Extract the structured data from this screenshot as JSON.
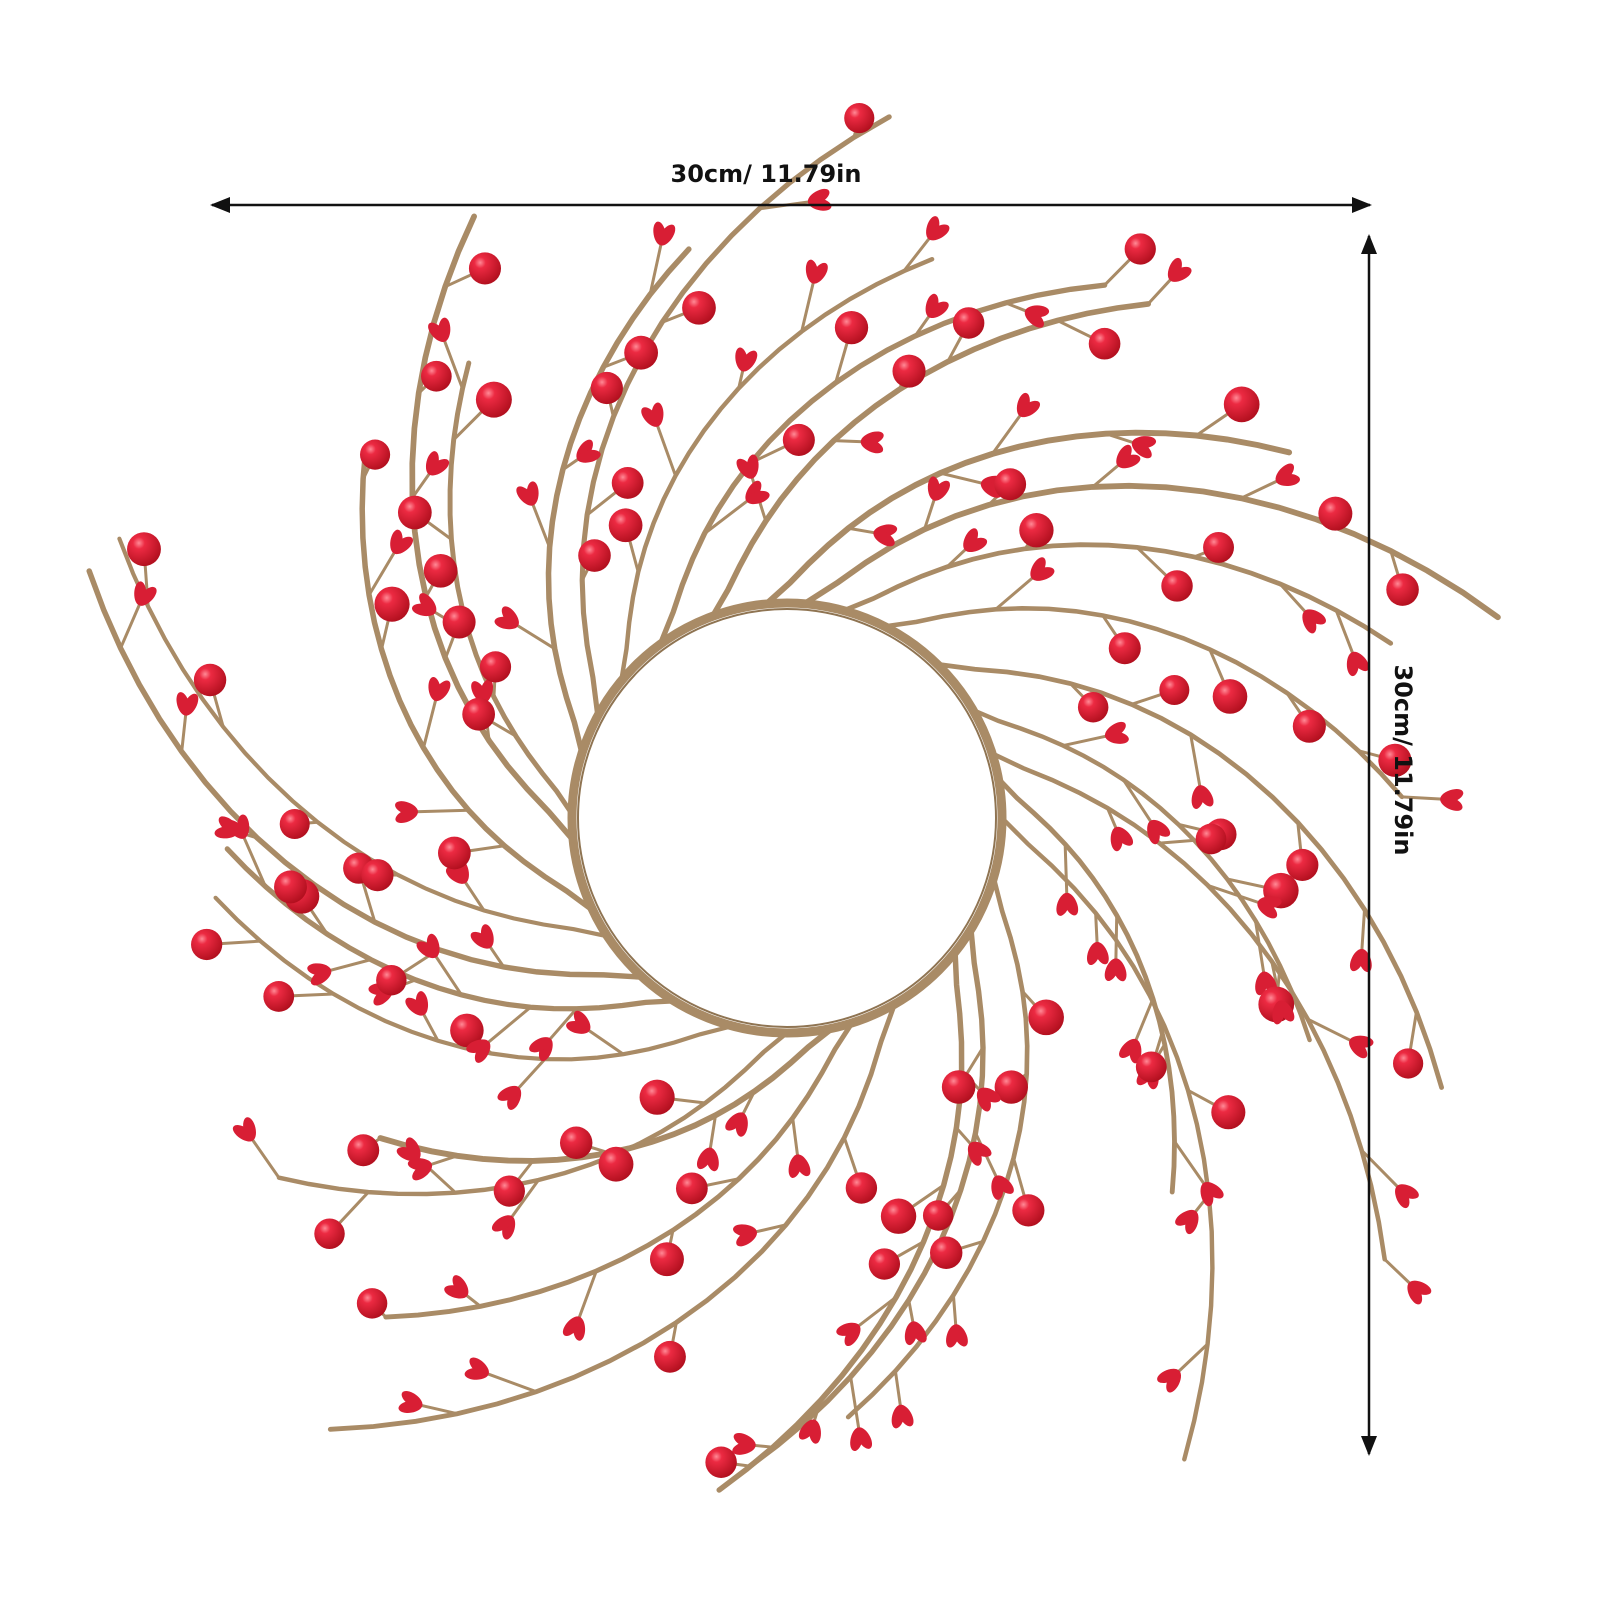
{
  "dimensions": {
    "width": "30cm/ 11.79in",
    "height": "30cm/ 11.79in"
  }
}
